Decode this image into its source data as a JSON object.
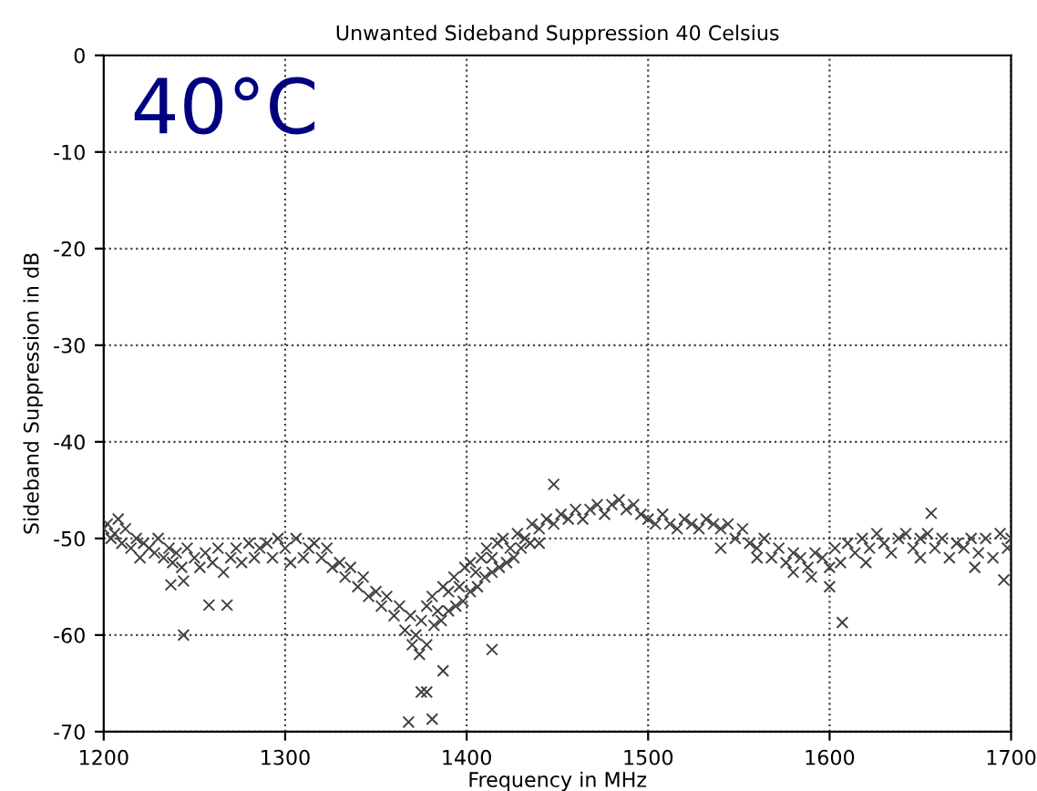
{
  "chart_data": {
    "type": "scatter",
    "title": "Unwanted Sideband Suppression 40 Celsius",
    "xlabel": "Frequency in MHz",
    "ylabel": "Sideband Suppression in dB",
    "annotations": [
      "40°C"
    ],
    "x": [
      1200,
      1202,
      1204,
      1206,
      1208,
      1210,
      1212,
      1215,
      1218,
      1220,
      1222,
      1225,
      1228,
      1230,
      1233,
      1236,
      1238,
      1240,
      1243,
      1246,
      1250,
      1253,
      1256,
      1260,
      1263,
      1266,
      1270,
      1273,
      1276,
      1280,
      1283,
      1286,
      1290,
      1293,
      1296,
      1300,
      1303,
      1306,
      1310,
      1313,
      1316,
      1320,
      1323,
      1326,
      1330,
      1333,
      1336,
      1340,
      1343,
      1346,
      1350,
      1353,
      1356,
      1360,
      1363,
      1366,
      1369,
      1372,
      1375,
      1378,
      1381,
      1384,
      1387,
      1390,
      1393,
      1396,
      1399,
      1402,
      1405,
      1408,
      1411,
      1414,
      1417,
      1420,
      1424,
      1428,
      1432,
      1436,
      1440,
      1444,
      1448,
      1452,
      1456,
      1460,
      1464,
      1468,
      1472,
      1476,
      1480,
      1484,
      1488,
      1492,
      1496,
      1500,
      1504,
      1508,
      1512,
      1516,
      1520,
      1524,
      1528,
      1532,
      1536,
      1540,
      1544,
      1548,
      1552,
      1556,
      1560,
      1564,
      1568,
      1572,
      1576,
      1580,
      1584,
      1588,
      1592,
      1596,
      1600,
      1603,
      1606,
      1610,
      1614,
      1618,
      1622,
      1626,
      1630,
      1634,
      1638,
      1642,
      1646,
      1650,
      1654,
      1658,
      1662,
      1666,
      1670,
      1674,
      1678,
      1682,
      1686,
      1690,
      1694,
      1698,
      1700,
      1370,
      1374,
      1378,
      1382,
      1386,
      1390,
      1394,
      1398,
      1402,
      1406,
      1410,
      1414,
      1418,
      1422,
      1426,
      1430,
      1435,
      1440,
      1540,
      1560,
      1580,
      1590,
      1600,
      1620,
      1650,
      1680,
      1237,
      1244,
      1258,
      1268,
      1244,
      1448,
      1414,
      1387,
      1375,
      1378,
      1368,
      1381,
      1607,
      1656,
      1696
    ],
    "values": [
      -49,
      -48.5,
      -50,
      -49.5,
      -48,
      -50.5,
      -49,
      -51,
      -50,
      -52,
      -50.5,
      -51,
      -51.5,
      -50,
      -52,
      -51,
      -52.5,
      -51.5,
      -53,
      -51,
      -52,
      -53,
      -51.5,
      -52.5,
      -51,
      -53.5,
      -52,
      -51,
      -52.5,
      -50.5,
      -52,
      -51,
      -50.5,
      -52,
      -50,
      -51,
      -52.5,
      -50,
      -52,
      -51,
      -50.5,
      -52,
      -51,
      -53,
      -52.5,
      -54,
      -53,
      -55,
      -54,
      -56,
      -55.5,
      -57,
      -56,
      -58,
      -57,
      -59.5,
      -58,
      -60,
      -58.5,
      -57,
      -56,
      -57.5,
      -55,
      -55.5,
      -54,
      -55,
      -53,
      -52.5,
      -53.5,
      -52,
      -51,
      -52,
      -50.5,
      -50,
      -51,
      -49.5,
      -50,
      -48.5,
      -49,
      -48,
      -48.5,
      -47.5,
      -48,
      -47,
      -48,
      -47,
      -46.5,
      -47.5,
      -46.5,
      -46,
      -47,
      -46.5,
      -47.5,
      -48,
      -48.5,
      -47.5,
      -48.5,
      -49,
      -48,
      -48.5,
      -49,
      -48,
      -48.5,
      -49,
      -48.5,
      -50,
      -49,
      -50.5,
      -51,
      -50,
      -52,
      -51,
      -52.5,
      -51.5,
      -52,
      -53,
      -51.5,
      -52,
      -53,
      -51,
      -52.5,
      -50.5,
      -51.5,
      -50,
      -51,
      -49.5,
      -50.5,
      -51.5,
      -50,
      -49.5,
      -51,
      -50,
      -49.5,
      -51,
      -50,
      -52,
      -50.5,
      -51,
      -50,
      -51.5,
      -50,
      -52,
      -49.5,
      -51,
      -50,
      -61,
      -62,
      -61,
      -59,
      -58.5,
      -57.5,
      -57,
      -56.5,
      -55.5,
      -55,
      -54,
      -53.5,
      -53,
      -52.5,
      -52,
      -51,
      -50.5,
      -50.5,
      -51,
      -52,
      -53.5,
      -54,
      -55,
      -52.5,
      -52,
      -53,
      -54.8,
      -54.4,
      -56.9,
      -56.9,
      -60,
      -44.4,
      -61.5,
      -63.7,
      -65.9,
      -65.9,
      -69,
      -68.7,
      -58.7,
      -47.4,
      -54.3
    ],
    "color": "#404040",
    "marker": "cross",
    "xlim": [
      1200,
      1700
    ],
    "ylim": [
      -70,
      0
    ],
    "xticks": [
      1200,
      1300,
      1400,
      1500,
      1600,
      1700
    ],
    "yticks": [
      -70,
      -60,
      -50,
      -40,
      -30,
      -20,
      -10,
      0
    ],
    "grid": true
  }
}
